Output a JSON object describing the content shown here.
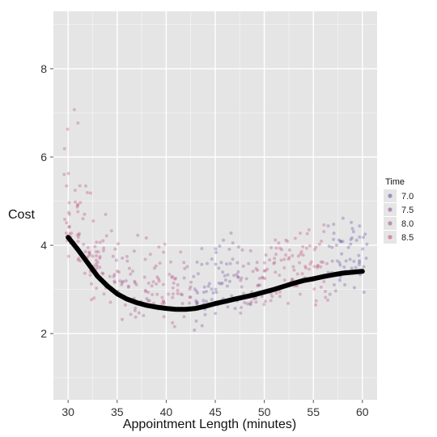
{
  "chart_data": {
    "type": "scatter",
    "xlabel": "Appointment Length (minutes)",
    "ylabel": "Cost",
    "xlim": [
      28.5,
      61.5
    ],
    "ylim": [
      0.5,
      9.3
    ],
    "x_ticks": [
      30,
      35,
      40,
      45,
      50,
      55,
      60
    ],
    "x_tick_labels": [
      "30",
      "35",
      "40",
      "45",
      "50",
      "55",
      "60"
    ],
    "y_ticks": [
      2,
      4,
      6,
      8
    ],
    "y_tick_labels": [
      "2",
      "4",
      "6",
      "8"
    ],
    "grid": true,
    "panel_background": "#e5e5e5",
    "grid_color": "#ffffff",
    "legend": {
      "title": "Time",
      "placement": "right",
      "entries": [
        {
          "label": "7.0",
          "value": 7.0,
          "color": "#5552a8"
        },
        {
          "label": "7.5",
          "value": 7.5,
          "color": "#7a4c96"
        },
        {
          "label": "8.0",
          "value": 8.0,
          "color": "#9f4884"
        },
        {
          "label": "8.5",
          "value": 8.5,
          "color": "#c44772"
        }
      ]
    },
    "scatter_summary": {
      "x_range": [
        30,
        60
      ],
      "points_per_minute": 14,
      "typical_spread_below": 1.2,
      "typical_spread_above": 1.4,
      "color_by_minute": [
        8.4,
        8.4,
        8.3,
        8.3,
        8.2,
        8.1,
        8.0,
        8.0,
        8.1,
        8.3,
        8.4,
        8.2,
        8.0,
        7.5,
        7.2,
        7.1,
        7.4,
        7.6,
        7.8,
        8.0,
        8.2,
        8.3,
        8.4,
        8.3,
        8.4,
        8.5,
        8.3,
        7.4,
        7.1,
        7.0,
        7.1
      ]
    },
    "smooth_line": {
      "color": "#000000",
      "x": [
        30,
        31,
        32,
        33,
        34,
        35,
        36,
        37,
        38,
        39,
        40,
        41,
        42,
        43,
        44,
        45,
        46,
        47,
        48,
        49,
        50,
        51,
        52,
        53,
        54,
        55,
        56,
        57,
        58,
        59,
        60
      ],
      "y": [
        4.18,
        3.9,
        3.6,
        3.3,
        3.08,
        2.9,
        2.78,
        2.7,
        2.64,
        2.6,
        2.57,
        2.55,
        2.55,
        2.57,
        2.62,
        2.68,
        2.73,
        2.78,
        2.83,
        2.88,
        2.94,
        3.0,
        3.07,
        3.14,
        3.2,
        3.24,
        3.29,
        3.33,
        3.37,
        3.39,
        3.41
      ]
    }
  }
}
